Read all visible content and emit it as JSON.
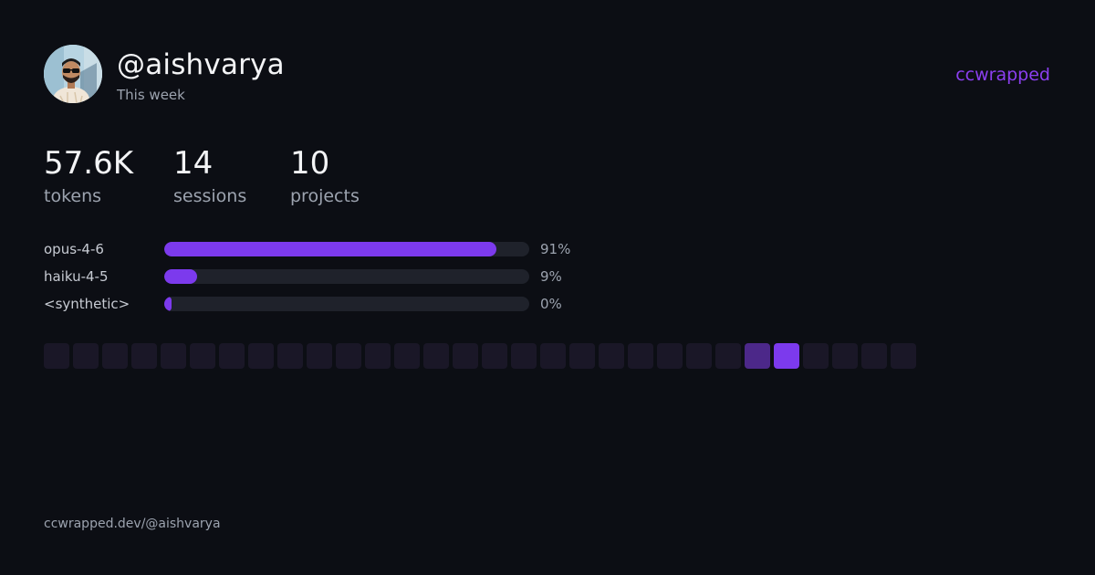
{
  "profile": {
    "username": "@aishvarya",
    "period": "This week",
    "avatar": "user-avatar-photo"
  },
  "brand": {
    "label": "ccwrapped",
    "color": "#8b3ff0"
  },
  "stats": [
    {
      "value": "57.6K",
      "label": "tokens"
    },
    {
      "value": "14",
      "label": "sessions"
    },
    {
      "value": "10",
      "label": "projects"
    }
  ],
  "models": [
    {
      "name": "opus-4-6",
      "percent": 91,
      "percent_label": "91%"
    },
    {
      "name": "haiku-4-5",
      "percent": 9,
      "percent_label": "9%"
    },
    {
      "name": "<synthetic>",
      "percent": 0,
      "percent_label": "0%"
    }
  ],
  "activity": {
    "cell_count": 30,
    "levels": [
      0,
      0,
      0,
      0,
      0,
      0,
      0,
      0,
      0,
      0,
      0,
      0,
      0,
      0,
      0,
      0,
      0,
      0,
      0,
      0,
      0,
      0,
      0,
      0,
      1,
      2,
      0,
      0,
      0,
      0
    ],
    "colors": {
      "0": "#1a1727",
      "1": "#4c2889",
      "2": "#7c3aed"
    }
  },
  "accent_color": "#7c3aed",
  "footer": {
    "url": "ccwrapped.dev/@aishvarya"
  }
}
